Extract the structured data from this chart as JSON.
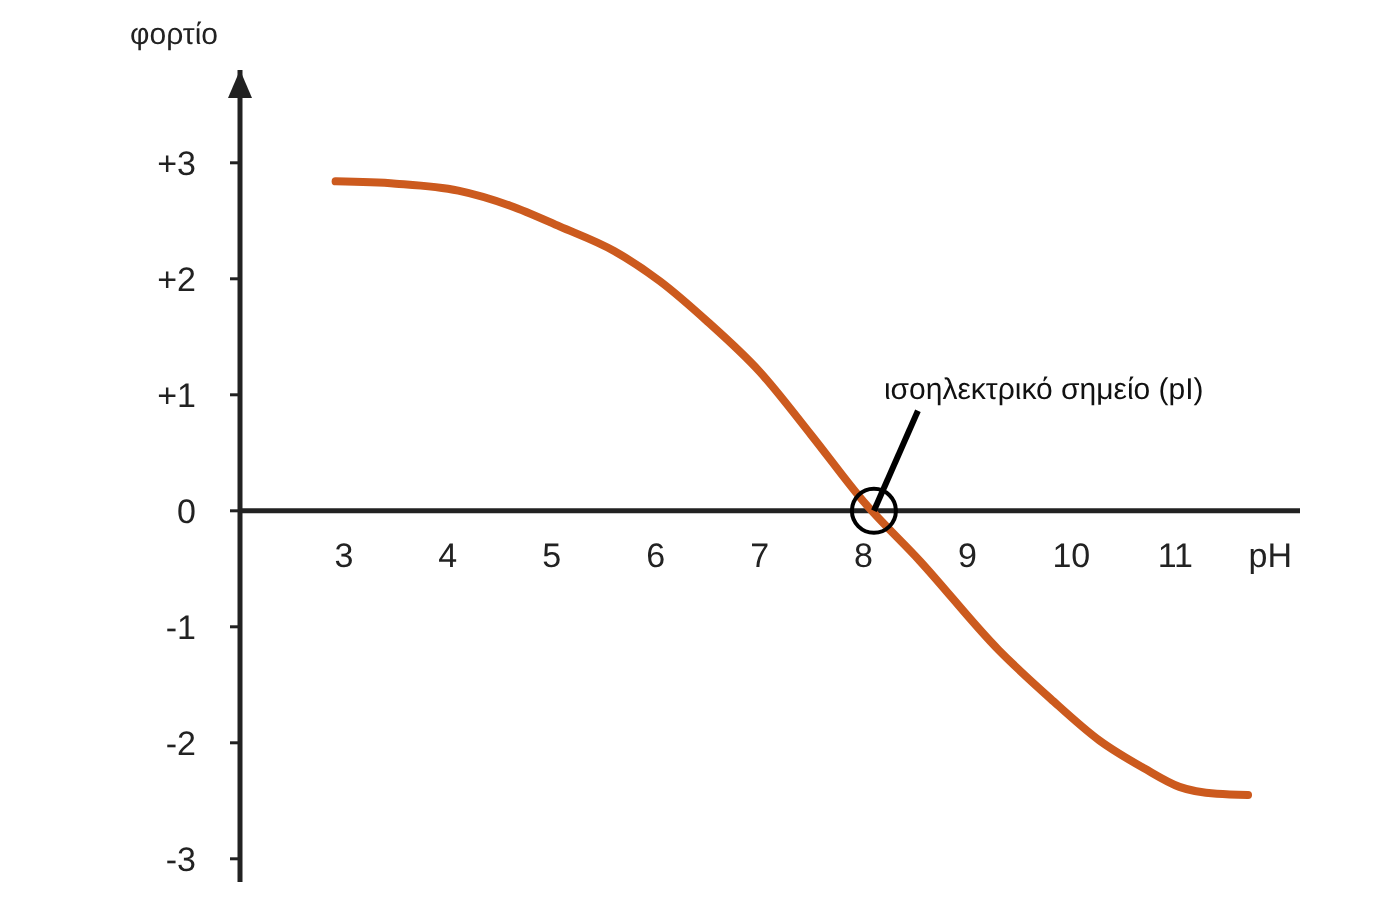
{
  "chart_data": {
    "type": "line",
    "xlabel": "pH",
    "ylabel": "φορτίο",
    "xlim": [
      2,
      12.2
    ],
    "ylim": [
      -3.2,
      3.8
    ],
    "xticks": [
      3,
      4,
      5,
      6,
      7,
      8,
      9,
      10,
      11
    ],
    "yticks": [
      {
        "value": 3,
        "label": "+3"
      },
      {
        "value": 2,
        "label": "+2"
      },
      {
        "value": 1,
        "label": "+1"
      },
      0,
      -1,
      -2,
      -3
    ],
    "series": [
      {
        "color": "#cc5a1e",
        "x": [
          2.92,
          3.5,
          4.1,
          4.6,
          5.08,
          5.6,
          6.04,
          6.5,
          7.0,
          7.5,
          8.0,
          8.54,
          9.3,
          9.8,
          10.27,
          10.7,
          11.04,
          11.4,
          11.7
        ],
        "values": [
          2.84,
          2.82,
          2.76,
          2.63,
          2.45,
          2.24,
          1.98,
          1.63,
          1.2,
          0.65,
          0.08,
          -0.43,
          -1.2,
          -1.62,
          -1.98,
          -2.22,
          -2.38,
          -2.44,
          -2.45
        ]
      }
    ],
    "annotations": [
      {
        "text": "ισοηλεκτρικό σημείο (pI)",
        "x": 8.1,
        "y": 0
      }
    ],
    "grid": false,
    "marker": "none",
    "line_style": "solid"
  }
}
